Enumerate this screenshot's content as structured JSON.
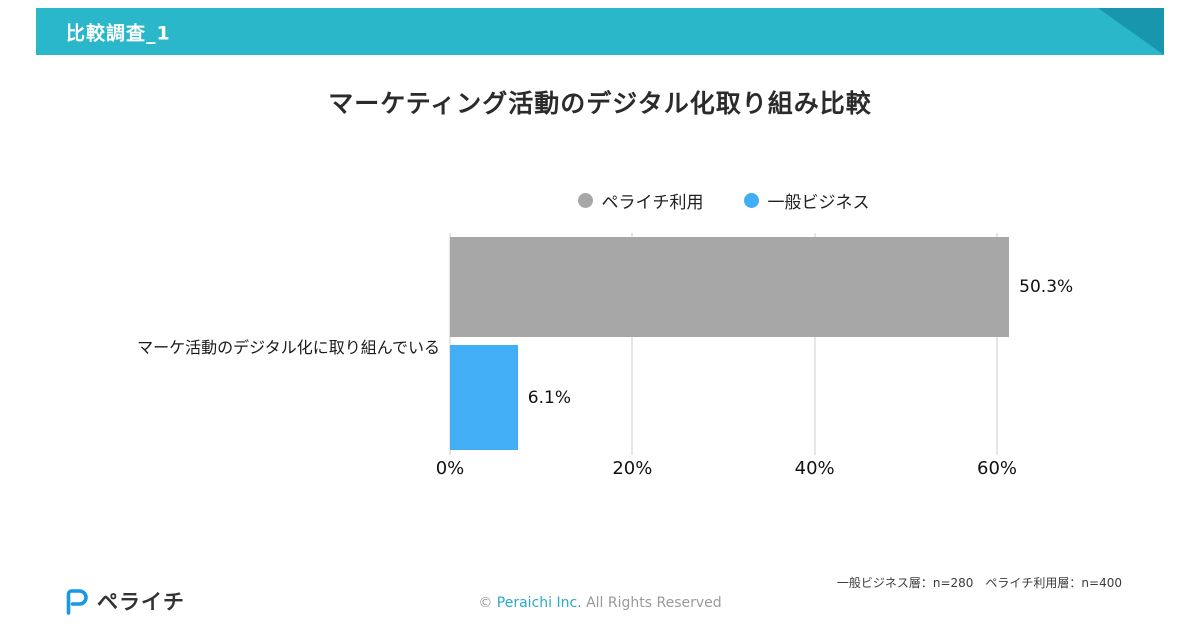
{
  "header": {
    "title": "比較調査_1"
  },
  "slide": {
    "title": "マーケティング活動のデジタル化取り組み比較"
  },
  "chart_data": {
    "type": "bar",
    "orientation": "horizontal",
    "title": "マーケティング活動のデジタル化取り組み比較",
    "categories": [
      "マーケ活動のデジタル化に取り組んでいる"
    ],
    "series": [
      {
        "name": "ペライチ利用",
        "values": [
          50.3
        ],
        "data_labels": [
          "50.3%"
        ],
        "color": "#a7a7a7"
      },
      {
        "name": "一般ビジネス",
        "values": [
          6.1
        ],
        "data_labels": [
          "6.1%"
        ],
        "color": "#41aef5"
      }
    ],
    "xlabel": "",
    "ylabel": "",
    "xlim": [
      0,
      60
    ],
    "x_ticks": [
      {
        "value": 0,
        "label": "0%"
      },
      {
        "value": 20,
        "label": "20%"
      },
      {
        "value": 40,
        "label": "40%"
      },
      {
        "value": 60,
        "label": "60%"
      }
    ],
    "grid": true,
    "legend_position": "top"
  },
  "footer": {
    "sample_note": "一般ビジネス層：n=280　ペライチ利用層：n=400",
    "logo_icon": "peraichi-p-icon",
    "logo_text": "ペライチ",
    "copyright_symbol": "©",
    "copyright_brand": "Peraichi Inc.",
    "copyright_rest": "All Rights Reserved"
  },
  "colors": {
    "header_teal": "#29b7c9",
    "header_fold": "#1796ae",
    "bar_gray": "#a7a7a7",
    "bar_blue": "#41aef5",
    "brand_blue": "#1798e5",
    "copyright_teal": "#2ba9c9"
  }
}
